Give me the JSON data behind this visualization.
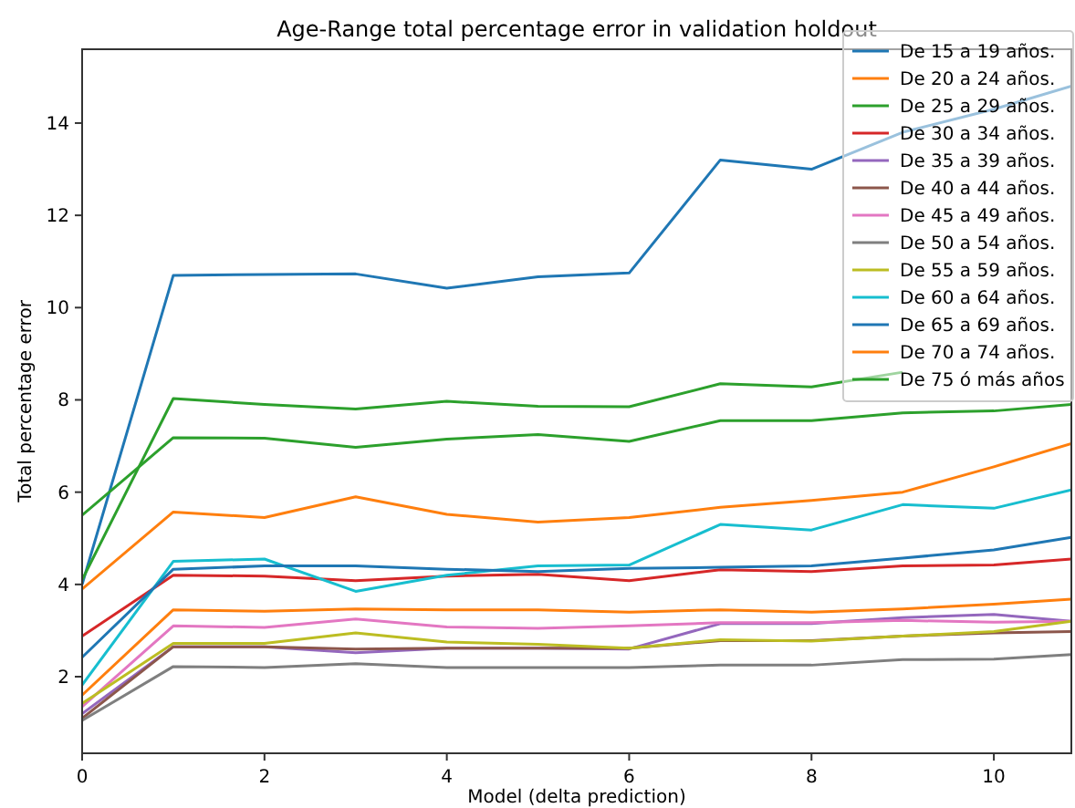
{
  "chart_data": {
    "type": "line",
    "title": "Age-Range total percentage error in validation holdout",
    "xlabel": "Model (delta prediction)",
    "ylabel": "Total percentage error",
    "x": [
      0,
      1,
      2,
      3,
      4,
      5,
      6,
      7,
      8,
      9,
      10,
      10.85
    ],
    "xlim": [
      0,
      10.85
    ],
    "xticks": [
      0,
      2,
      4,
      6,
      8,
      10
    ],
    "ylim": [
      0.34,
      15.6
    ],
    "yticks": [
      2,
      4,
      6,
      8,
      10,
      12,
      14
    ],
    "legend": "top right",
    "grid": false,
    "line_style": "solid",
    "marker": "none",
    "series": [
      {
        "name": "De 15 a 19 años.",
        "color": "#1f77b4",
        "values": [
          4.0,
          10.7,
          10.72,
          10.73,
          10.42,
          10.67,
          10.75,
          13.2,
          13.0,
          13.8,
          14.3,
          14.8
        ]
      },
      {
        "name": "De 20 a 24 años.",
        "color": "#ff7f0e",
        "values": [
          3.9,
          5.57,
          5.45,
          5.9,
          5.52,
          5.35,
          5.45,
          5.67,
          5.82,
          6.0,
          6.55,
          7.05
        ]
      },
      {
        "name": "De 25 a 29 años.",
        "color": "#2ca02c",
        "values": [
          4.1,
          8.03,
          7.9,
          7.8,
          7.97,
          7.86,
          7.85,
          8.35,
          8.28,
          8.6,
          null,
          null
        ]
      },
      {
        "name": "De 30 a 34 años.",
        "color": "#d62728",
        "values": [
          2.88,
          4.2,
          4.18,
          4.08,
          4.18,
          4.22,
          4.08,
          4.32,
          4.28,
          4.4,
          4.42,
          4.55
        ]
      },
      {
        "name": "De 35 a 39 años.",
        "color": "#9467bd",
        "values": [
          1.2,
          2.65,
          2.65,
          2.52,
          2.62,
          2.62,
          2.6,
          3.15,
          3.15,
          3.28,
          3.35,
          3.2
        ]
      },
      {
        "name": "De 40 a 44 años.",
        "color": "#8c564b",
        "values": [
          1.1,
          2.65,
          2.65,
          2.6,
          2.62,
          2.62,
          2.62,
          2.78,
          2.78,
          2.88,
          2.95,
          2.98
        ]
      },
      {
        "name": "De 45 a 49 años.",
        "color": "#e377c2",
        "values": [
          1.35,
          3.1,
          3.07,
          3.25,
          3.08,
          3.05,
          3.1,
          3.17,
          3.17,
          3.22,
          3.18,
          3.2
        ]
      },
      {
        "name": "De 50 a 54 años.",
        "color": "#7f7f7f",
        "values": [
          1.05,
          2.22,
          2.2,
          2.28,
          2.2,
          2.2,
          2.2,
          2.25,
          2.25,
          2.37,
          2.38,
          2.48
        ]
      },
      {
        "name": "De 55 a 59 años.",
        "color": "#bcbd22",
        "values": [
          1.42,
          2.72,
          2.72,
          2.95,
          2.75,
          2.7,
          2.62,
          2.8,
          2.77,
          2.88,
          2.98,
          3.2
        ]
      },
      {
        "name": "De 60 a 64 años.",
        "color": "#17becf",
        "values": [
          1.82,
          4.5,
          4.55,
          3.85,
          4.2,
          4.4,
          4.42,
          5.3,
          5.18,
          5.73,
          5.65,
          6.05
        ]
      },
      {
        "name": "De 65 a 69 años.",
        "color": "#1f77b4",
        "values": [
          2.42,
          4.33,
          4.4,
          4.4,
          4.33,
          4.28,
          4.35,
          4.37,
          4.4,
          4.57,
          4.75,
          5.02
        ]
      },
      {
        "name": "De 70 a 74 años.",
        "color": "#ff7f0e",
        "values": [
          1.6,
          3.45,
          3.42,
          3.47,
          3.45,
          3.45,
          3.4,
          3.45,
          3.4,
          3.47,
          3.57,
          3.68
        ]
      },
      {
        "name": "De 75 ó más años",
        "color": "#2ca02c",
        "values": [
          5.5,
          7.18,
          7.17,
          6.97,
          7.15,
          7.25,
          7.1,
          7.55,
          7.55,
          7.72,
          7.76,
          7.9
        ]
      }
    ]
  }
}
